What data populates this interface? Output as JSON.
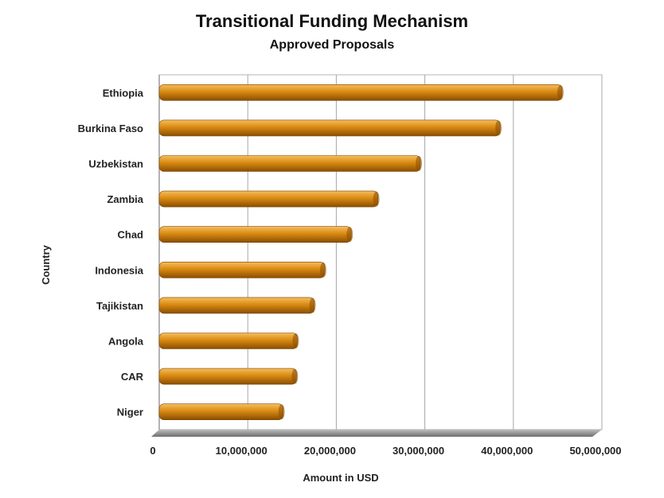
{
  "chart_data": {
    "type": "bar",
    "orientation": "horizontal",
    "title": "Transitional Funding Mechanism",
    "subtitle": "Approved Proposals",
    "xlabel": "Amount in USD",
    "ylabel": "Country",
    "categories": [
      "Ethiopia",
      "Burkina Faso",
      "Uzbekistan",
      "Zambia",
      "Chad",
      "Indonesia",
      "Tajikistan",
      "Angola",
      "CAR",
      "Niger"
    ],
    "values": [
      45500000,
      38500000,
      29500000,
      24700000,
      21700000,
      18700000,
      17500000,
      15600000,
      15500000,
      14000000
    ],
    "xlim": [
      0,
      50000000
    ],
    "ticks": [
      0,
      10000000,
      20000000,
      30000000,
      40000000,
      50000000
    ],
    "tick_labels": [
      "0",
      "10,000,000",
      "20,000,000",
      "30,000,000",
      "40,000,000",
      "50,000,000"
    ],
    "grid": true,
    "bar_color": "#d98a12",
    "bar_highlight": "#f6be5e",
    "bar_shadow": "#8a4e02"
  }
}
